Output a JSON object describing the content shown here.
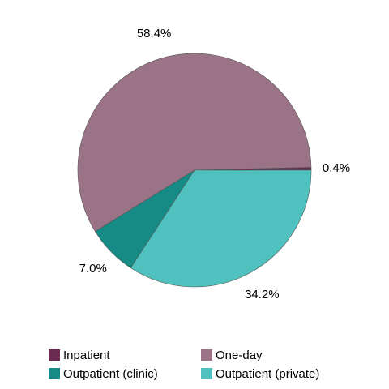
{
  "chart_data": {
    "type": "pie",
    "categories": [
      "Inpatient",
      "One-day",
      "Outpatient (clinic)",
      "Outpatient (private)"
    ],
    "values": [
      0.4,
      58.4,
      7.0,
      34.2
    ],
    "value_labels": [
      "0.4%",
      "58.4%",
      "7.0%",
      "34.2%"
    ],
    "colors": [
      "#6b2a4f",
      "#9b7386",
      "#168a85",
      "#4fc1be"
    ],
    "legend": "bottom"
  }
}
